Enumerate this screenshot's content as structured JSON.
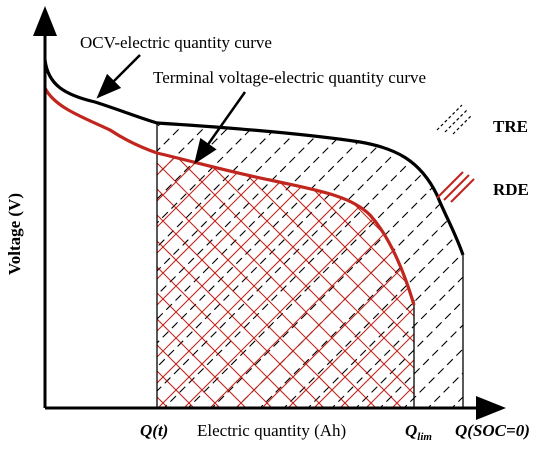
{
  "diagram": {
    "y_axis_label": "Voltage (V)",
    "x_axis_label": "Electric quantity (Ah)",
    "ocv_curve_label": "OCV-electric quantity curve",
    "terminal_curve_label": "Terminal voltage-electric quantity curve",
    "x_ticks": {
      "q_t": "Q(t)",
      "q_lim_main": "Q",
      "q_lim_sub": "lim",
      "q_soc0": "Q(SOC=0)"
    },
    "legend": {
      "tre": "TRE",
      "rde": "RDE"
    },
    "colors": {
      "ocv_curve": "#000000",
      "terminal_curve": "#c0261d",
      "rde_hatch": "#c0261d",
      "tre_hatch": "#000000",
      "axes": "#000000"
    }
  }
}
